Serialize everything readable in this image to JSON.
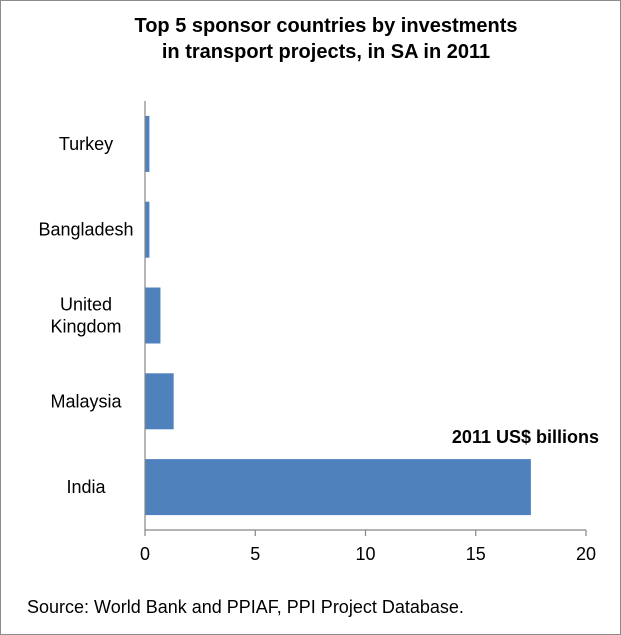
{
  "chart_data": {
    "type": "bar",
    "orientation": "horizontal",
    "title": [
      "Top 5 sponsor countries by investments",
      "in transport projects, in SA in 2011"
    ],
    "categories": [
      [
        "Turkey"
      ],
      [
        "Bangladesh"
      ],
      [
        "United",
        "Kingdom"
      ],
      [
        "Malaysia"
      ],
      [
        "India"
      ]
    ],
    "values": [
      0.2,
      0.2,
      0.7,
      1.3,
      17.5
    ],
    "xlim": [
      0,
      20
    ],
    "xticks": [
      0,
      5,
      10,
      15,
      20
    ],
    "unit_label": "2011 US$ billions",
    "bar_color": "#4f81bd",
    "grid": false
  },
  "source": "Source:  World Bank and PPIAF, PPI Project Database."
}
